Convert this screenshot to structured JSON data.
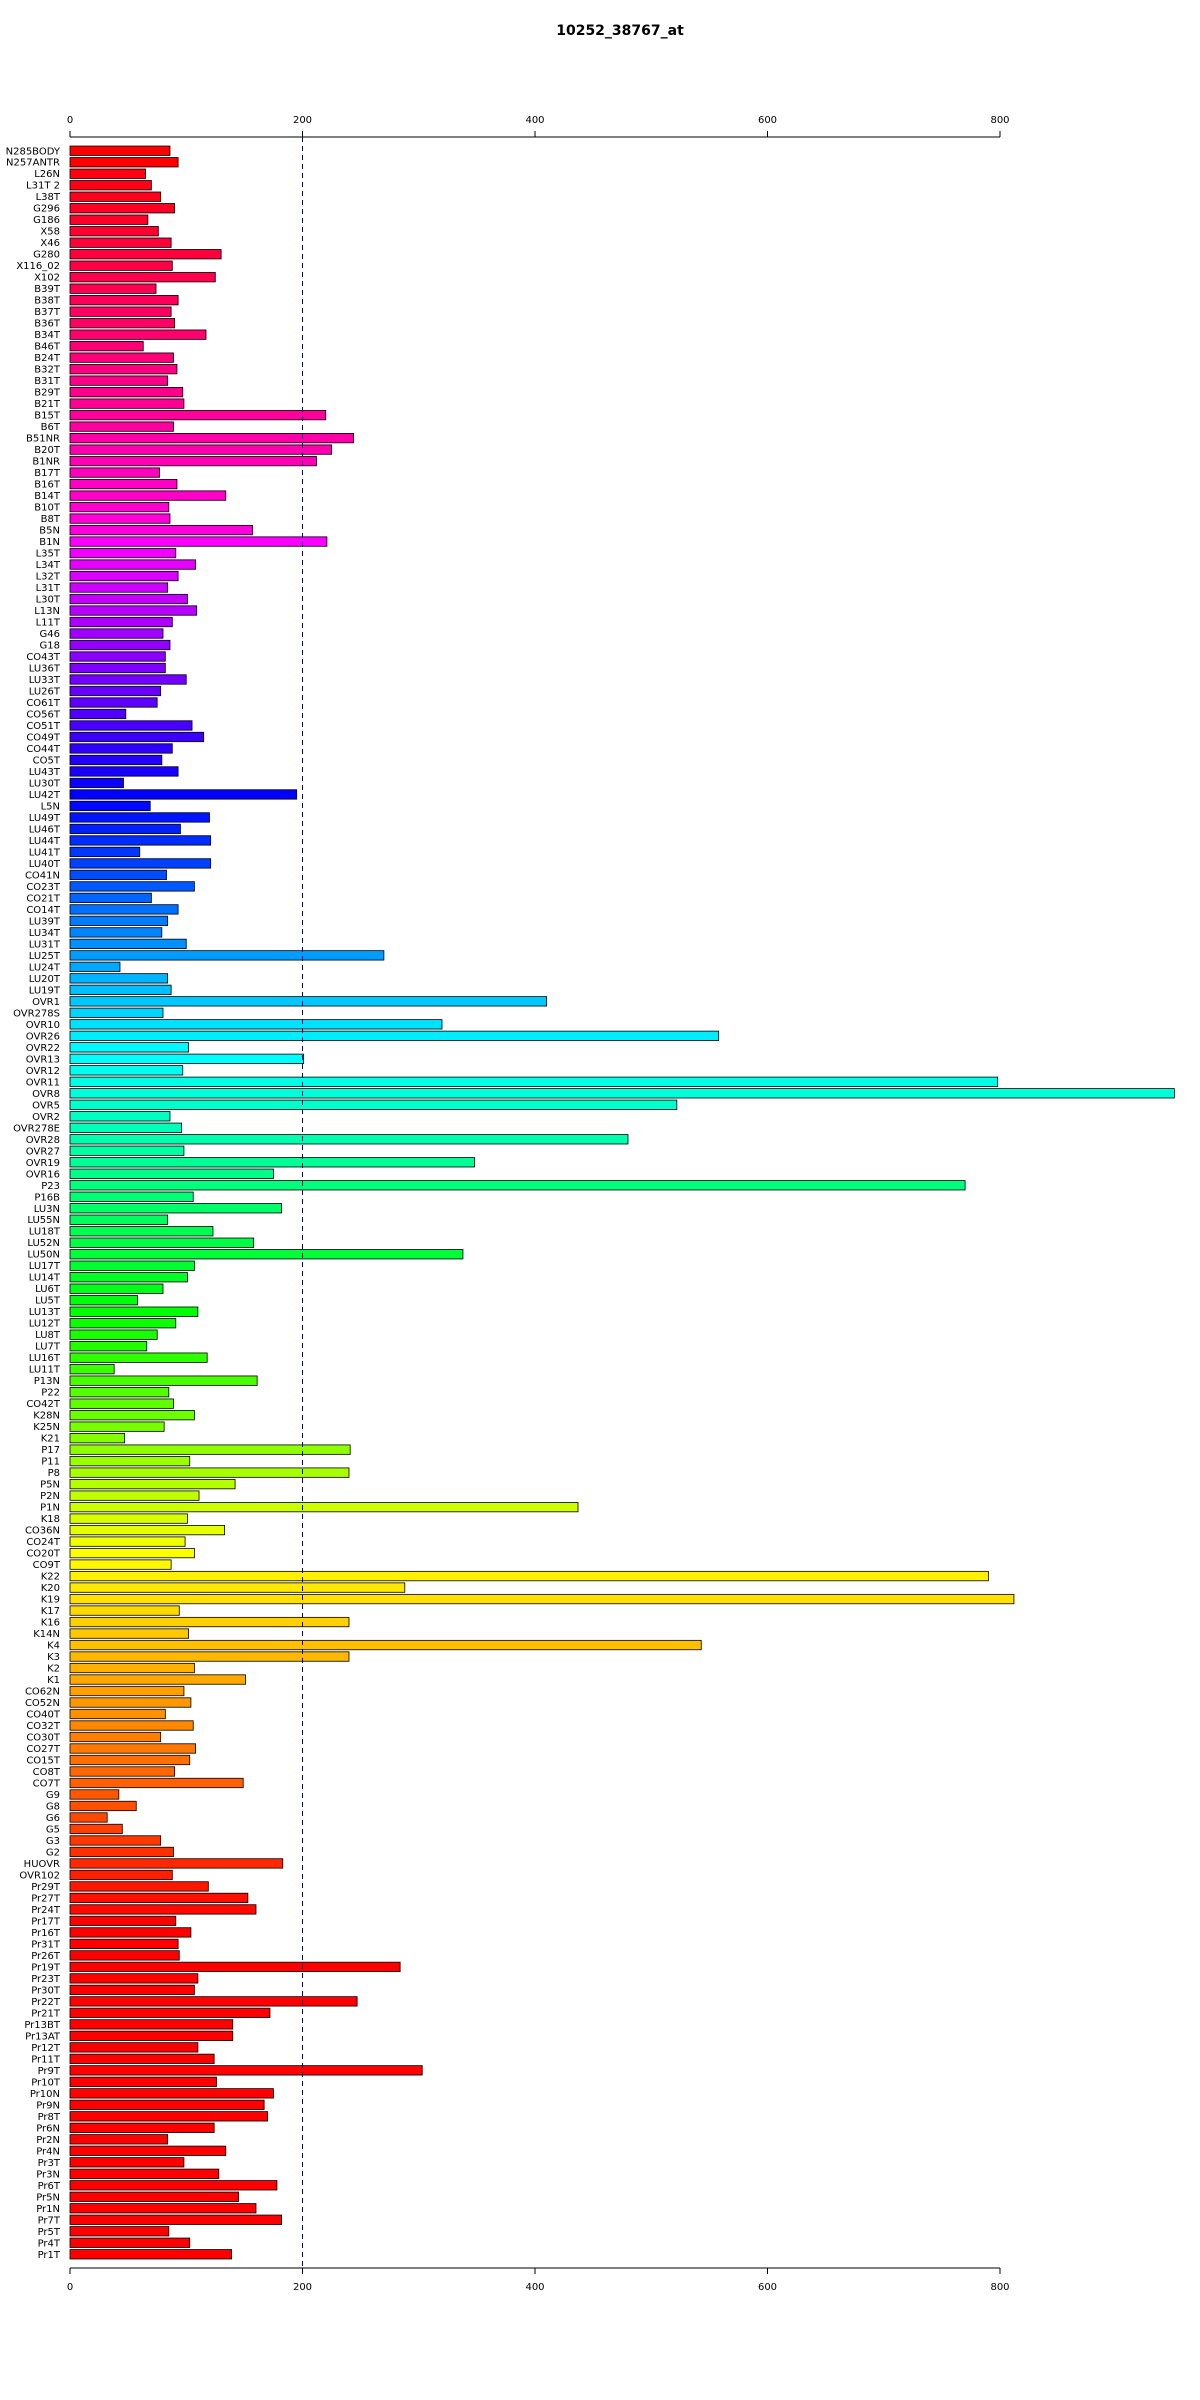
{
  "chart_data": {
    "type": "bar",
    "orientation": "horizontal",
    "title": "10252_38767_at",
    "xlabel": "",
    "ylabel": "",
    "xlim": [
      0,
      950
    ],
    "x_ticks": [
      0,
      200,
      400,
      600,
      800
    ],
    "reference_line": 200,
    "axes": [
      "top",
      "bottom"
    ],
    "categories": [
      "N285BODY",
      "N257ANTR",
      "L26N",
      "L31T 2",
      "L38T",
      "G296",
      "G186",
      "X58",
      "X46",
      "G280",
      "X116_02",
      "X102",
      "B39T",
      "B38T",
      "B37T",
      "B36T",
      "B34T",
      "B46T",
      "B24T",
      "B32T",
      "B31T",
      "B29T",
      "B21T",
      "B15T",
      "B6T",
      "B51NR",
      "B20T",
      "B1NR",
      "B17T",
      "B16T",
      "B14T",
      "B10T",
      "B8T",
      "B5N",
      "B1N",
      "L35T",
      "L34T",
      "L32T",
      "L31T",
      "L30T",
      "L13N",
      "L11T",
      "G46",
      "G18",
      "CO43T",
      "LU36T",
      "LU33T",
      "LU26T",
      "CO61T",
      "CO56T",
      "CO51T",
      "CO49T",
      "CO44T",
      "CO5T",
      "LU43T",
      "LU30T",
      "LU42T",
      "L5N",
      "LU49T",
      "LU46T",
      "LU44T",
      "LU41T",
      "LU40T",
      "CO41N",
      "CO23T",
      "CO21T",
      "CO14T",
      "LU39T",
      "LU34T",
      "LU31T",
      "LU25T",
      "LU24T",
      "LU20T",
      "LU19T",
      "OVR1",
      "OVR278S",
      "OVR10",
      "OVR26",
      "OVR22",
      "OVR13",
      "OVR12",
      "OVR11",
      "OVR8",
      "OVR5",
      "OVR2",
      "OVR278E",
      "OVR28",
      "OVR27",
      "OVR19",
      "OVR16",
      "P23",
      "P16B",
      "LU3N",
      "LU55N",
      "LU18T",
      "LU52N",
      "LU50N",
      "LU17T",
      "LU14T",
      "LU6T",
      "LU5T",
      "LU13T",
      "LU12T",
      "LU8T",
      "LU7T",
      "LU16T",
      "LU11T",
      "P13N",
      "P22",
      "CO42T",
      "K28N",
      "K25N",
      "K21",
      "P17",
      "P11",
      "P8",
      "P5N",
      "P2N",
      "P1N",
      "K18",
      "CO36N",
      "CO24T",
      "CO20T",
      "CO9T",
      "K22",
      "K20",
      "K19",
      "K17",
      "K16",
      "K14N",
      "K4",
      "K3",
      "K2",
      "K1",
      "CO62N",
      "CO52N",
      "CO40T",
      "CO32T",
      "CO30T",
      "CO27T",
      "CO15T",
      "CO8T",
      "CO7T",
      "G9",
      "G8",
      "G6",
      "G5",
      "G3",
      "G2",
      "HUOVR",
      "OVR102",
      "Pr29T",
      "Pr27T",
      "Pr24T",
      "Pr17T",
      "Pr16T",
      "Pr31T",
      "Pr26T",
      "Pr19T",
      "Pr23T",
      "Pr30T",
      "Pr22T",
      "Pr21T",
      "Pr13BT",
      "Pr13AT",
      "Pr12T",
      "Pr11T",
      "Pr9T",
      "Pr10T",
      "Pr10N",
      "Pr9N",
      "Pr8T",
      "Pr6N",
      "Pr2N",
      "Pr4N",
      "Pr3T",
      "Pr3N",
      "Pr6T",
      "Pr5N",
      "Pr1N",
      "Pr7T",
      "Pr5T",
      "Pr4T",
      "Pr1T"
    ],
    "values": [
      86,
      93,
      65,
      70,
      78,
      90,
      67,
      76,
      87,
      130,
      88,
      125,
      74,
      93,
      87,
      90,
      117,
      63,
      89,
      92,
      84,
      97,
      98,
      220,
      89,
      244,
      225,
      212,
      77,
      92,
      134,
      85,
      86,
      157,
      221,
      91,
      108,
      93,
      84,
      101,
      109,
      88,
      80,
      86,
      82,
      82,
      100,
      78,
      75,
      48,
      105,
      115,
      88,
      79,
      93,
      46,
      195,
      69,
      120,
      95,
      121,
      60,
      121,
      83,
      107,
      70,
      93,
      84,
      79,
      100,
      270,
      43,
      84,
      87,
      410,
      80,
      320,
      558,
      102,
      201,
      97,
      798,
      950,
      522,
      86,
      96,
      480,
      98,
      348,
      175,
      770,
      106,
      182,
      84,
      123,
      158,
      338,
      107,
      101,
      80,
      58,
      110,
      91,
      75,
      66,
      118,
      38,
      161,
      85,
      89,
      107,
      81,
      47,
      241,
      103,
      240,
      142,
      111,
      437,
      101,
      133,
      99,
      107,
      87,
      790,
      288,
      812,
      94,
      240,
      102,
      543,
      240,
      107,
      151,
      98,
      104,
      82,
      106,
      78,
      108,
      103,
      90,
      149,
      42,
      57,
      32,
      45,
      78,
      89,
      183,
      88,
      119,
      153,
      160,
      91,
      104,
      93,
      94,
      284,
      110,
      107,
      247,
      172,
      140,
      140,
      110,
      124,
      303,
      126,
      175,
      167,
      170,
      124,
      84,
      134,
      98,
      128,
      178,
      145,
      160,
      182,
      85,
      103,
      139
    ],
    "bar_colors": [
      "#ff0000",
      "#ff0000",
      "#ff0010",
      "#ff0014",
      "#ff001c",
      "#ff0024",
      "#ff0028",
      "#ff0030",
      "#ff0038",
      "#ff003c",
      "#ff0044",
      "#ff004c",
      "#ff0050",
      "#ff0058",
      "#ff0060",
      "#ff0064",
      "#ff006c",
      "#ff0074",
      "#ff0078",
      "#ff0080",
      "#ff0088",
      "#ff008c",
      "#ff0094",
      "#ff009c",
      "#ff00a0",
      "#ff00a8",
      "#ff00b0",
      "#ff00b4",
      "#ff00bc",
      "#ff00c4",
      "#ff00c8",
      "#ff00d0",
      "#ff00d8",
      "#ff00dc",
      "#fc00ff",
      "#f000ff",
      "#e400ff",
      "#d800ff",
      "#cc00ff",
      "#c400ff",
      "#b800ff",
      "#ac00ff",
      "#a000ff",
      "#9400ff",
      "#8c00ff",
      "#8000ff",
      "#7400ff",
      "#6800ff",
      "#5c00ff",
      "#5000ff",
      "#4800ff",
      "#3c00ff",
      "#3000ff",
      "#2400ff",
      "#1800ff",
      "#0c00ff",
      "#0000ff",
      "#0008ff",
      "#0014ff",
      "#0020ff",
      "#002cff",
      "#0038ff",
      "#0040ff",
      "#004cff",
      "#0058ff",
      "#0064ff",
      "#0070ff",
      "#007cff",
      "#0084ff",
      "#0090ff",
      "#009cff",
      "#00a8ff",
      "#00b4ff",
      "#00c0ff",
      "#00c8ff",
      "#00d4ff",
      "#00e0ff",
      "#00ecff",
      "#00f8ff",
      "#00fffc",
      "#00fff0",
      "#00ffe4",
      "#00ffd8",
      "#00ffcc",
      "#00ffc0",
      "#00ffb8",
      "#00ffac",
      "#00ffa0",
      "#00ff94",
      "#00ff88",
      "#00ff7c",
      "#00ff74",
      "#00ff68",
      "#00ff5c",
      "#00ff50",
      "#00ff44",
      "#00ff38",
      "#00ff30",
      "#00ff24",
      "#00ff18",
      "#00ff0c",
      "#00ff00",
      "#0cff00",
      "#18ff00",
      "#24ff00",
      "#30ff00",
      "#3cff00",
      "#48ff00",
      "#54ff00",
      "#60ff00",
      "#6cff00",
      "#78ff00",
      "#84ff00",
      "#90ff00",
      "#9cff00",
      "#a8ff00",
      "#b4ff00",
      "#c0ff00",
      "#ccff00",
      "#d8ff00",
      "#e4ff00",
      "#f0ff00",
      "#fcff00",
      "#fff800",
      "#fff000",
      "#ffe800",
      "#ffe000",
      "#ffd800",
      "#ffd000",
      "#ffc800",
      "#ffc000",
      "#ffb800",
      "#ffb000",
      "#ffa800",
      "#ffa000",
      "#ff9800",
      "#ff9000",
      "#ff8800",
      "#ff8000",
      "#ff7800",
      "#ff7000",
      "#ff6800",
      "#ff6000",
      "#ff5800",
      "#ff5000",
      "#ff4800",
      "#ff4000",
      "#ff3800",
      "#ff3000",
      "#ff2800",
      "#ff2000",
      "#ff1800",
      "#ff1000",
      "#ff0800",
      "#ff0000",
      "#ff0000",
      "#ff0000",
      "#ff0000",
      "#ff0000",
      "#ff0000",
      "#ff0000",
      "#ff0000",
      "#ff0000",
      "#ff0000",
      "#ff0000",
      "#ff0000",
      "#ff0000",
      "#ff0000",
      "#ff0000",
      "#ff0000",
      "#ff0000",
      "#ff0000",
      "#ff0000",
      "#ff0000",
      "#ff0000",
      "#ff0000",
      "#ff0000",
      "#ff0000",
      "#ff0000",
      "#ff0000",
      "#ff0000",
      "#ff0000",
      "#ff0000",
      "#ff0000"
    ],
    "grid": false,
    "legend": "none"
  }
}
